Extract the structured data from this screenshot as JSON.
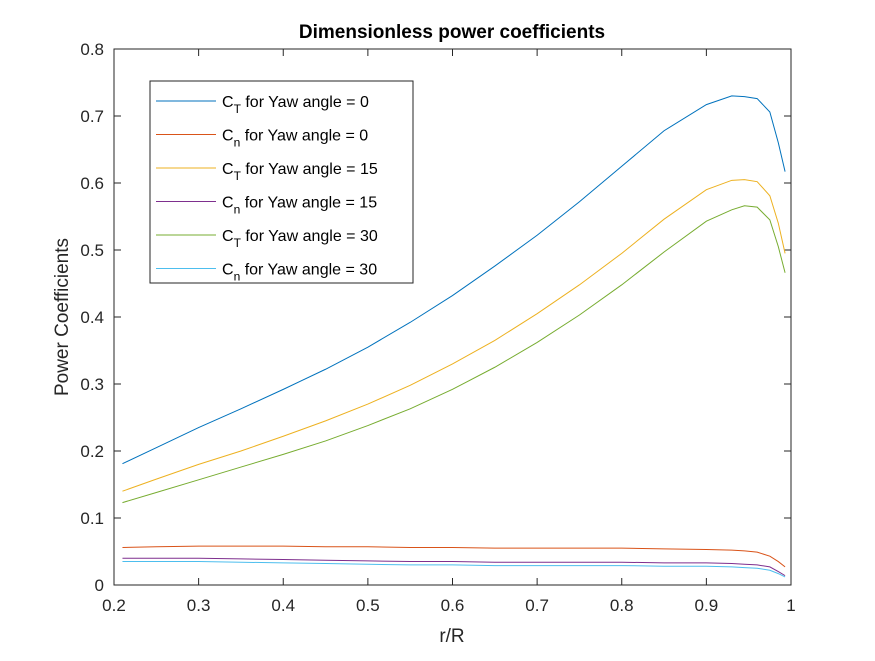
{
  "chart_data": {
    "type": "line",
    "title": "Dimensionless power coefficients",
    "xlabel": "r/R",
    "ylabel": "Power Coefficients",
    "xlim": [
      0.2,
      1.0
    ],
    "ylim": [
      0,
      0.8
    ],
    "xticks": [
      "0.2",
      "0.3",
      "0.4",
      "0.5",
      "0.6",
      "0.7",
      "0.8",
      "0.9",
      "1"
    ],
    "yticks": [
      "0",
      "0.1",
      "0.2",
      "0.3",
      "0.4",
      "0.5",
      "0.6",
      "0.7",
      "0.8"
    ],
    "grid": false,
    "legend_position": "top-left",
    "x": [
      0.21,
      0.25,
      0.3,
      0.35,
      0.4,
      0.45,
      0.5,
      0.55,
      0.6,
      0.65,
      0.7,
      0.75,
      0.8,
      0.85,
      0.9,
      0.93,
      0.945,
      0.96,
      0.975,
      0.985,
      0.993
    ],
    "series": [
      {
        "legend_main": "C",
        "legend_sub": "T",
        "legend_rest": " for Yaw angle = 0",
        "color": "#0072BD",
        "values": [
          0.181,
          0.205,
          0.235,
          0.263,
          0.292,
          0.322,
          0.355,
          0.392,
          0.432,
          0.476,
          0.522,
          0.572,
          0.625,
          0.678,
          0.717,
          0.73,
          0.729,
          0.726,
          0.706,
          0.66,
          0.617
        ]
      },
      {
        "legend_main": "C",
        "legend_sub": "n",
        "legend_rest": " for Yaw angle = 0",
        "color": "#D95319",
        "values": [
          0.056,
          0.057,
          0.058,
          0.058,
          0.058,
          0.057,
          0.057,
          0.056,
          0.056,
          0.055,
          0.055,
          0.055,
          0.055,
          0.054,
          0.053,
          0.052,
          0.051,
          0.049,
          0.043,
          0.035,
          0.027
        ]
      },
      {
        "legend_main": "C",
        "legend_sub": "T",
        "legend_rest": " for Yaw angle = 15",
        "color": "#EDB120",
        "values": [
          0.14,
          0.158,
          0.18,
          0.2,
          0.222,
          0.245,
          0.27,
          0.298,
          0.33,
          0.365,
          0.405,
          0.448,
          0.495,
          0.546,
          0.59,
          0.604,
          0.605,
          0.602,
          0.581,
          0.54,
          0.495
        ]
      },
      {
        "legend_main": "C",
        "legend_sub": "n",
        "legend_rest": " for Yaw angle = 15",
        "color": "#7E2F8E",
        "values": [
          0.04,
          0.04,
          0.04,
          0.039,
          0.038,
          0.037,
          0.036,
          0.035,
          0.035,
          0.034,
          0.034,
          0.034,
          0.034,
          0.033,
          0.033,
          0.032,
          0.031,
          0.03,
          0.027,
          0.02,
          0.014
        ]
      },
      {
        "legend_main": "C",
        "legend_sub": "T",
        "legend_rest": " for Yaw angle = 30",
        "color": "#77AC30",
        "values": [
          0.123,
          0.138,
          0.157,
          0.176,
          0.195,
          0.215,
          0.238,
          0.263,
          0.292,
          0.325,
          0.362,
          0.403,
          0.448,
          0.497,
          0.543,
          0.56,
          0.566,
          0.564,
          0.545,
          0.505,
          0.466
        ]
      },
      {
        "legend_main": "C",
        "legend_sub": "n",
        "legend_rest": " for Yaw angle = 30",
        "color": "#4DBEEE",
        "values": [
          0.035,
          0.035,
          0.035,
          0.034,
          0.033,
          0.032,
          0.031,
          0.03,
          0.03,
          0.029,
          0.029,
          0.029,
          0.029,
          0.028,
          0.028,
          0.027,
          0.026,
          0.025,
          0.022,
          0.017,
          0.012
        ]
      }
    ]
  }
}
